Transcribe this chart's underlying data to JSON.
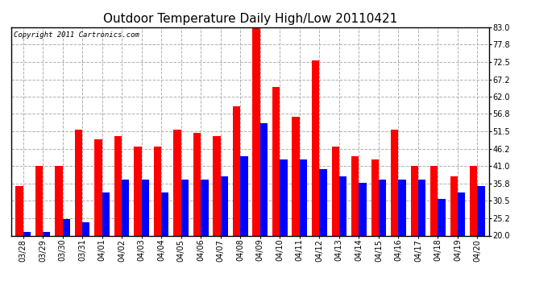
{
  "title": "Outdoor Temperature Daily High/Low 20110421",
  "copyright": "Copyright 2011 Cartronics.com",
  "categories": [
    "03/28",
    "03/29",
    "03/30",
    "03/31",
    "04/01",
    "04/02",
    "04/03",
    "04/04",
    "04/05",
    "04/06",
    "04/07",
    "04/08",
    "04/09",
    "04/10",
    "04/11",
    "04/12",
    "04/13",
    "04/14",
    "04/15",
    "04/16",
    "04/17",
    "04/18",
    "04/19",
    "04/20"
  ],
  "highs": [
    35.0,
    41.0,
    41.0,
    52.0,
    49.0,
    50.0,
    47.0,
    47.0,
    52.0,
    51.0,
    50.0,
    59.0,
    83.0,
    65.0,
    56.0,
    73.0,
    47.0,
    44.0,
    43.0,
    52.0,
    41.0,
    41.0,
    38.0,
    41.0
  ],
  "lows": [
    21.0,
    21.0,
    25.0,
    24.0,
    33.0,
    37.0,
    37.0,
    33.0,
    37.0,
    37.0,
    38.0,
    44.0,
    54.0,
    43.0,
    43.0,
    40.0,
    38.0,
    36.0,
    37.0,
    37.0,
    37.0,
    31.0,
    33.0,
    35.0
  ],
  "bar_color_high": "#ff0000",
  "bar_color_low": "#0000ff",
  "ylim_min": 20.0,
  "ylim_max": 83.0,
  "yticks": [
    20.0,
    25.2,
    30.5,
    35.8,
    41.0,
    46.2,
    51.5,
    56.8,
    62.0,
    67.2,
    72.5,
    77.8,
    83.0
  ],
  "background_color": "#ffffff",
  "plot_bg_color": "#ffffff",
  "grid_color": "#b0b0b0",
  "title_fontsize": 11,
  "tick_fontsize": 7,
  "copyright_fontsize": 6.5
}
